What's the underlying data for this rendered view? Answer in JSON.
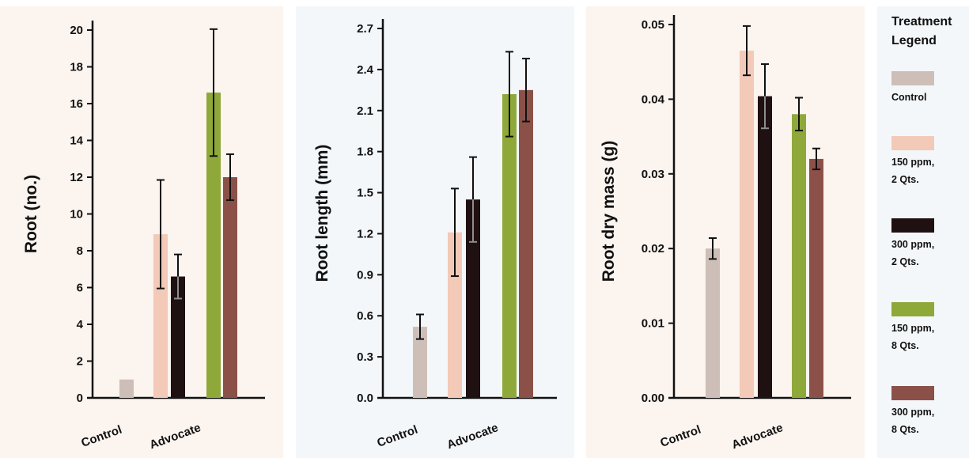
{
  "chart_data": [
    {
      "type": "bar",
      "ylabel": "Root (no.)",
      "ylim": [
        0,
        20
      ],
      "yticks": [
        "0",
        "2",
        "4",
        "6",
        "8",
        "10",
        "12",
        "14",
        "16",
        "18",
        "20"
      ],
      "categories": [
        "Control",
        "Advocate"
      ],
      "series": [
        {
          "group": "Control",
          "treatment": 0,
          "value": 1.0,
          "error": 0
        },
        {
          "group": "Advocate",
          "treatment": 1,
          "value": 8.9,
          "error": 2.95
        },
        {
          "group": "Advocate",
          "treatment": 2,
          "value": 6.6,
          "error": 1.2
        },
        {
          "group": "Advocate",
          "treatment": 3,
          "value": 16.6,
          "error": 3.45
        },
        {
          "group": "Advocate",
          "treatment": 4,
          "value": 12.0,
          "error": 1.25
        }
      ]
    },
    {
      "type": "bar",
      "ylabel": "Root length (mm)",
      "ylim": [
        0,
        2.7
      ],
      "yticks": [
        "0.0",
        "0.3",
        "0.6",
        "0.9",
        "1.2",
        "1.5",
        "1.8",
        "2.1",
        "2.4",
        "2.7"
      ],
      "categories": [
        "Control",
        "Advocate"
      ],
      "series": [
        {
          "group": "Control",
          "treatment": 0,
          "value": 0.52,
          "error": 0.09
        },
        {
          "group": "Advocate",
          "treatment": 1,
          "value": 1.21,
          "error": 0.32
        },
        {
          "group": "Advocate",
          "treatment": 2,
          "value": 1.45,
          "error": 0.31
        },
        {
          "group": "Advocate",
          "treatment": 3,
          "value": 2.22,
          "error": 0.31
        },
        {
          "group": "Advocate",
          "treatment": 4,
          "value": 2.25,
          "error": 0.23
        }
      ]
    },
    {
      "type": "bar",
      "ylabel": "Root dry mass (g)",
      "ylim": [
        0,
        0.05
      ],
      "yticks": [
        "0.00",
        "0.01",
        "0.02",
        "0.03",
        "0.04",
        "0.05"
      ],
      "categories": [
        "Control",
        "Advocate"
      ],
      "series": [
        {
          "group": "Control",
          "treatment": 0,
          "value": 0.02,
          "error": 0.0014
        },
        {
          "group": "Advocate",
          "treatment": 1,
          "value": 0.0465,
          "error": 0.0033
        },
        {
          "group": "Advocate",
          "treatment": 2,
          "value": 0.0404,
          "error": 0.0043
        },
        {
          "group": "Advocate",
          "treatment": 3,
          "value": 0.038,
          "error": 0.0022
        },
        {
          "group": "Advocate",
          "treatment": 4,
          "value": 0.032,
          "error": 0.0014
        }
      ]
    }
  ],
  "legend": {
    "title": "Treatment\nLegend",
    "items": [
      {
        "label": "Control",
        "color": "#cdbfb8"
      },
      {
        "label": "150 ppm,\n2 Qts.",
        "color": "#f3c9b8"
      },
      {
        "label": "300 ppm,\n2 Qts.",
        "color": "#1f1012"
      },
      {
        "label": "150 ppm,\n8 Qts.",
        "color": "#8fa83a"
      },
      {
        "label": "300 ppm,\n8 Qts.",
        "color": "#8b5148"
      }
    ]
  }
}
